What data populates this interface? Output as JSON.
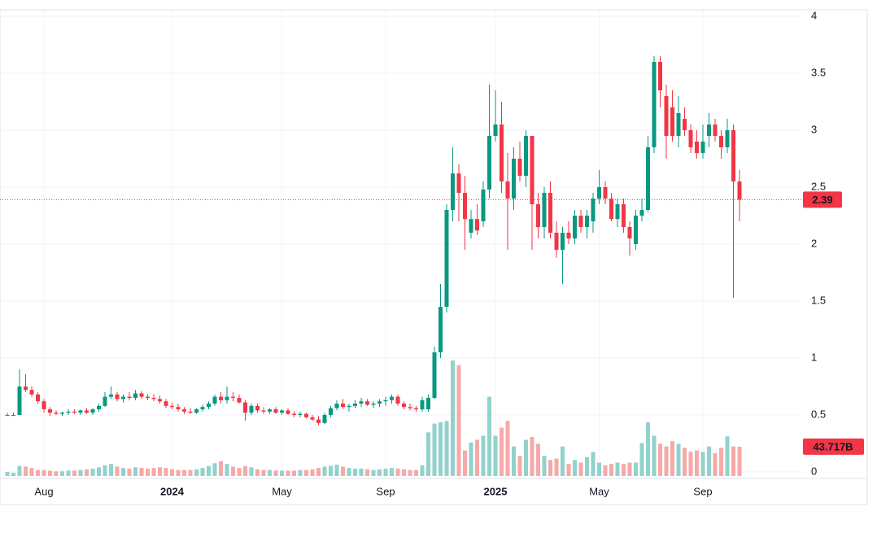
{
  "chart_data": {
    "type": "candlestick",
    "categories": [
      null,
      null,
      null,
      null,
      null,
      null,
      "Aug",
      null,
      null,
      null,
      null,
      null,
      null,
      null,
      null,
      null,
      null,
      null,
      null,
      null,
      null,
      null,
      null,
      null,
      null,
      null,
      null,
      "2024",
      null,
      null,
      null,
      null,
      null,
      null,
      null,
      null,
      null,
      null,
      null,
      null,
      null,
      null,
      null,
      null,
      null,
      "May",
      null,
      null,
      null,
      null,
      null,
      null,
      null,
      null,
      null,
      null,
      null,
      null,
      null,
      null,
      null,
      null,
      "Sep",
      null,
      null,
      null,
      null,
      null,
      null,
      null,
      null,
      null,
      null,
      null,
      null,
      null,
      null,
      null,
      null,
      null,
      "2025",
      null,
      null,
      null,
      null,
      null,
      null,
      null,
      null,
      null,
      null,
      null,
      null,
      null,
      null,
      null,
      null,
      "May",
      null,
      null,
      null,
      null,
      null,
      null,
      null,
      null,
      null,
      null,
      null,
      null,
      null,
      null,
      null,
      null,
      "Sep",
      null,
      null,
      null,
      null,
      null,
      null
    ],
    "open": [
      0.5,
      0.5,
      0.5,
      0.75,
      0.72,
      0.68,
      0.62,
      0.55,
      0.52,
      0.51,
      0.52,
      0.53,
      0.52,
      0.54,
      0.52,
      0.55,
      0.58,
      0.66,
      0.68,
      0.64,
      0.66,
      0.65,
      0.69,
      0.66,
      0.65,
      0.64,
      0.62,
      0.58,
      0.57,
      0.55,
      0.53,
      0.52,
      0.55,
      0.57,
      0.6,
      0.66,
      0.63,
      0.66,
      0.65,
      0.61,
      0.52,
      0.58,
      0.54,
      0.53,
      0.55,
      0.52,
      0.54,
      0.51,
      0.5,
      0.51,
      0.48,
      0.46,
      0.43,
      0.5,
      0.56,
      0.6,
      0.57,
      0.58,
      0.6,
      0.62,
      0.59,
      0.6,
      0.62,
      0.63,
      0.66,
      0.6,
      0.57,
      0.56,
      0.55,
      0.55,
      0.65,
      1.05,
      1.45,
      2.3,
      2.62,
      2.45,
      2.1,
      2.22,
      2.2,
      2.48,
      2.95,
      3.05,
      2.55,
      2.4,
      2.75,
      2.6,
      2.95,
      2.35,
      2.15,
      2.45,
      2.1,
      1.95,
      2.1,
      2.05,
      2.25,
      2.15,
      2.2,
      2.4,
      2.5,
      2.4,
      2.22,
      2.35,
      2.15,
      2.0,
      2.25,
      2.3,
      2.85,
      3.6,
      3.3,
      3.2,
      2.95,
      3.1,
      3.0,
      2.9,
      2.8,
      2.95,
      3.05,
      2.95,
      2.85,
      3.0,
      2.55
    ],
    "high": [
      0.52,
      0.52,
      0.9,
      0.86,
      0.75,
      0.7,
      0.64,
      0.57,
      0.54,
      0.53,
      0.55,
      0.55,
      0.55,
      0.56,
      0.56,
      0.6,
      0.7,
      0.75,
      0.7,
      0.68,
      0.7,
      0.72,
      0.71,
      0.68,
      0.68,
      0.67,
      0.64,
      0.61,
      0.6,
      0.57,
      0.56,
      0.56,
      0.59,
      0.62,
      0.68,
      0.7,
      0.75,
      0.7,
      0.68,
      0.63,
      0.6,
      0.6,
      0.57,
      0.56,
      0.57,
      0.55,
      0.56,
      0.53,
      0.53,
      0.52,
      0.5,
      0.49,
      0.52,
      0.58,
      0.63,
      0.64,
      0.6,
      0.63,
      0.65,
      0.64,
      0.62,
      0.64,
      0.66,
      0.68,
      0.68,
      0.62,
      0.6,
      0.58,
      0.66,
      0.68,
      1.1,
      1.65,
      2.35,
      2.85,
      2.7,
      2.6,
      2.3,
      2.35,
      2.55,
      3.4,
      3.35,
      3.25,
      2.8,
      2.85,
      2.9,
      3.0,
      2.95,
      2.45,
      2.5,
      2.55,
      2.2,
      2.15,
      2.2,
      2.3,
      2.3,
      2.3,
      2.45,
      2.65,
      2.55,
      2.45,
      2.4,
      2.4,
      2.2,
      2.3,
      2.4,
      2.95,
      3.65,
      3.65,
      3.4,
      3.35,
      3.3,
      3.2,
      3.05,
      3.0,
      3.05,
      3.15,
      3.1,
      3.0,
      3.1,
      3.05,
      2.65
    ],
    "low": [
      0.49,
      0.49,
      0.5,
      0.7,
      0.66,
      0.6,
      0.52,
      0.49,
      0.5,
      0.49,
      0.5,
      0.51,
      0.5,
      0.51,
      0.5,
      0.53,
      0.57,
      0.64,
      0.62,
      0.61,
      0.63,
      0.63,
      0.64,
      0.63,
      0.62,
      0.6,
      0.56,
      0.55,
      0.53,
      0.51,
      0.51,
      0.51,
      0.53,
      0.55,
      0.58,
      0.6,
      0.6,
      0.62,
      0.6,
      0.45,
      0.5,
      0.52,
      0.51,
      0.51,
      0.51,
      0.5,
      0.5,
      0.48,
      0.48,
      0.47,
      0.45,
      0.41,
      0.42,
      0.48,
      0.54,
      0.55,
      0.53,
      0.56,
      0.57,
      0.58,
      0.56,
      0.57,
      0.58,
      0.6,
      0.58,
      0.55,
      0.54,
      0.53,
      0.53,
      0.53,
      0.64,
      1.0,
      1.4,
      2.2,
      2.2,
      1.95,
      2.05,
      2.08,
      2.15,
      2.4,
      2.9,
      2.45,
      1.95,
      2.3,
      2.55,
      2.5,
      1.95,
      2.05,
      2.05,
      2.05,
      1.88,
      1.65,
      2.0,
      2.0,
      2.1,
      2.05,
      2.1,
      2.35,
      2.35,
      2.2,
      2.15,
      2.1,
      1.9,
      1.95,
      2.2,
      2.28,
      2.8,
      3.2,
      2.75,
      2.9,
      2.85,
      2.95,
      2.8,
      2.75,
      2.75,
      2.85,
      2.9,
      2.75,
      2.8,
      1.53,
      2.2
    ],
    "close": [
      0.5,
      0.5,
      0.75,
      0.72,
      0.68,
      0.62,
      0.55,
      0.52,
      0.51,
      0.52,
      0.53,
      0.52,
      0.54,
      0.52,
      0.55,
      0.58,
      0.66,
      0.68,
      0.64,
      0.66,
      0.65,
      0.69,
      0.66,
      0.65,
      0.64,
      0.62,
      0.58,
      0.57,
      0.55,
      0.53,
      0.52,
      0.55,
      0.57,
      0.6,
      0.66,
      0.63,
      0.66,
      0.65,
      0.61,
      0.52,
      0.58,
      0.54,
      0.53,
      0.55,
      0.52,
      0.54,
      0.51,
      0.5,
      0.51,
      0.48,
      0.46,
      0.43,
      0.5,
      0.56,
      0.6,
      0.57,
      0.58,
      0.6,
      0.62,
      0.59,
      0.6,
      0.62,
      0.63,
      0.66,
      0.6,
      0.57,
      0.56,
      0.55,
      0.63,
      0.65,
      1.05,
      1.45,
      2.3,
      2.62,
      2.45,
      2.22,
      2.22,
      2.12,
      2.48,
      2.95,
      3.05,
      2.55,
      2.4,
      2.75,
      2.6,
      2.95,
      2.35,
      2.15,
      2.45,
      2.1,
      1.95,
      2.1,
      2.05,
      2.25,
      2.15,
      2.25,
      2.4,
      2.5,
      2.4,
      2.22,
      2.35,
      2.15,
      2.05,
      2.25,
      2.3,
      2.85,
      3.6,
      3.35,
      2.95,
      2.95,
      3.15,
      3.0,
      2.85,
      2.8,
      2.9,
      3.05,
      2.95,
      2.85,
      3.0,
      2.55,
      2.39
    ],
    "volume": [
      6,
      5,
      15,
      14,
      12,
      9,
      9,
      8,
      7,
      7,
      8,
      8,
      9,
      10,
      11,
      13,
      16,
      18,
      14,
      12,
      11,
      13,
      12,
      11,
      12,
      13,
      12,
      10,
      9,
      9,
      9,
      10,
      12,
      15,
      19,
      22,
      18,
      14,
      12,
      15,
      13,
      10,
      9,
      9,
      8,
      8,
      8,
      8,
      9,
      9,
      10,
      12,
      14,
      15,
      17,
      14,
      12,
      11,
      11,
      10,
      9,
      10,
      11,
      12,
      11,
      10,
      9,
      9,
      16,
      65,
      78,
      80,
      82,
      172,
      165,
      38,
      50,
      54,
      60,
      118,
      60,
      72,
      82,
      44,
      30,
      54,
      58,
      48,
      30,
      24,
      26,
      44,
      18,
      24,
      20,
      28,
      36,
      20,
      16,
      18,
      20,
      18,
      20,
      20,
      49,
      80,
      60,
      48,
      44,
      52,
      48,
      42,
      36,
      38,
      36,
      44,
      34,
      42,
      59,
      44,
      43.717
    ],
    "volume_label": "43.717B",
    "up_color": "#089981",
    "down_color": "#f23645",
    "volume_up_color": "#92d2cc",
    "volume_down_color": "#f7a9a7",
    "ylim": [
      -0.05,
      4.05
    ],
    "yticks": [
      0,
      0.5,
      1,
      1.5,
      2,
      2.5,
      3,
      3.5,
      4
    ],
    "grid": true
  }
}
